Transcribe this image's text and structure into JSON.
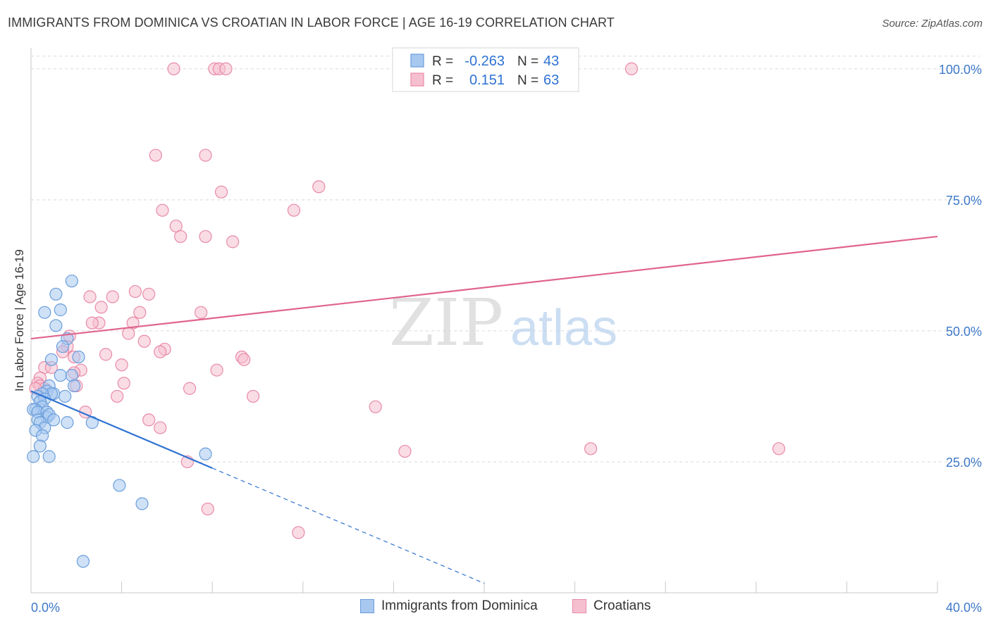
{
  "title": "IMMIGRANTS FROM DOMINICA VS CROATIAN IN LABOR FORCE | AGE 16-19 CORRELATION CHART",
  "source": "Source: ZipAtlas.com",
  "watermark": {
    "zip": "ZIP",
    "atlas": "atlas"
  },
  "colors": {
    "blue_fill": "#a8c8f0",
    "blue_stroke": "#6a9edb",
    "blue_line": "#2e72d2",
    "pink_fill": "#f6bfd0",
    "pink_stroke": "#e88aa8",
    "pink_line": "#e0648e",
    "axis_label": "#3d78c9",
    "grid": "#d9d9d9"
  },
  "stats_legend": [
    {
      "r_label": "R =",
      "r_value": "-0.263",
      "n_label": "N =",
      "n_value": "43"
    },
    {
      "r_label": "R =",
      "r_value": "0.151",
      "n_label": "N =",
      "n_value": "63"
    }
  ],
  "bottom_legend": [
    "Immigrants from Dominica",
    "Croatians"
  ],
  "chart_data": {
    "type": "scatter",
    "ylabel": "In Labor Force | Age 16-19",
    "xlim": [
      0,
      40
    ],
    "ylim": [
      0,
      104
    ],
    "x_ticks": [
      "0.0%",
      "40.0%"
    ],
    "y_ticks": [
      {
        "value": 25,
        "label": "25.0%"
      },
      {
        "value": 50,
        "label": "50.0%"
      },
      {
        "value": 75,
        "label": "75.0%"
      },
      {
        "value": 100,
        "label": "100.0%"
      }
    ],
    "series": [
      {
        "name": "Immigrants from Dominica",
        "points": [
          [
            1.8,
            59.5
          ],
          [
            1.1,
            57.0
          ],
          [
            0.6,
            53.5
          ],
          [
            1.3,
            54.0
          ],
          [
            1.1,
            51.0
          ],
          [
            1.6,
            48.5
          ],
          [
            1.4,
            47.0
          ],
          [
            2.1,
            45.0
          ],
          [
            0.9,
            44.5
          ],
          [
            1.3,
            41.5
          ],
          [
            1.8,
            41.5
          ],
          [
            1.9,
            39.5
          ],
          [
            0.8,
            39.5
          ],
          [
            0.7,
            38.5
          ],
          [
            1.0,
            38.0
          ],
          [
            0.9,
            38.0
          ],
          [
            1.5,
            37.5
          ],
          [
            0.5,
            38.0
          ],
          [
            0.3,
            37.5
          ],
          [
            0.6,
            37.0
          ],
          [
            0.4,
            36.5
          ],
          [
            0.5,
            35.5
          ],
          [
            0.2,
            35.0
          ],
          [
            0.1,
            35.0
          ],
          [
            0.3,
            34.5
          ],
          [
            0.7,
            34.5
          ],
          [
            0.7,
            33.5
          ],
          [
            0.8,
            34.0
          ],
          [
            0.3,
            33.0
          ],
          [
            0.4,
            32.5
          ],
          [
            1.6,
            32.5
          ],
          [
            2.7,
            32.5
          ],
          [
            1.0,
            33.0
          ],
          [
            0.6,
            31.5
          ],
          [
            0.2,
            31.0
          ],
          [
            0.5,
            30.0
          ],
          [
            0.4,
            28.0
          ],
          [
            0.1,
            26.0
          ],
          [
            0.8,
            26.0
          ],
          [
            7.7,
            26.5
          ],
          [
            3.9,
            20.5
          ],
          [
            4.9,
            17.0
          ],
          [
            2.3,
            6.0
          ]
        ],
        "trend": {
          "x1": 0.0,
          "y1": 38.5,
          "x2": 8.0,
          "y2": 23.8,
          "dash_to_x": 20.0,
          "dash_to_y": 1.8
        }
      },
      {
        "name": "Croatians",
        "points": [
          [
            6.3,
            100.0
          ],
          [
            8.1,
            100.0
          ],
          [
            8.3,
            100.0
          ],
          [
            8.6,
            100.0
          ],
          [
            22.6,
            100.0
          ],
          [
            26.5,
            100.0
          ],
          [
            5.5,
            83.5
          ],
          [
            7.7,
            83.5
          ],
          [
            12.7,
            77.5
          ],
          [
            8.4,
            76.5
          ],
          [
            5.8,
            73.0
          ],
          [
            11.6,
            73.0
          ],
          [
            6.4,
            70.0
          ],
          [
            6.6,
            68.0
          ],
          [
            7.7,
            68.0
          ],
          [
            8.9,
            67.0
          ],
          [
            5.2,
            57.0
          ],
          [
            4.6,
            57.5
          ],
          [
            2.6,
            56.5
          ],
          [
            3.6,
            56.5
          ],
          [
            3.1,
            54.5
          ],
          [
            4.8,
            53.5
          ],
          [
            7.5,
            53.5
          ],
          [
            3.0,
            51.5
          ],
          [
            2.7,
            51.5
          ],
          [
            4.5,
            51.5
          ],
          [
            4.3,
            49.5
          ],
          [
            1.7,
            49.0
          ],
          [
            5.0,
            48.0
          ],
          [
            1.6,
            47.0
          ],
          [
            1.4,
            46.0
          ],
          [
            1.9,
            45.0
          ],
          [
            3.3,
            45.5
          ],
          [
            5.9,
            46.5
          ],
          [
            5.7,
            46.0
          ],
          [
            9.3,
            45.0
          ],
          [
            9.4,
            44.5
          ],
          [
            4.0,
            43.5
          ],
          [
            0.6,
            43.0
          ],
          [
            0.9,
            43.0
          ],
          [
            2.2,
            42.5
          ],
          [
            8.2,
            42.5
          ],
          [
            1.9,
            42.0
          ],
          [
            0.4,
            41.0
          ],
          [
            2.0,
            39.5
          ],
          [
            0.3,
            40.0
          ],
          [
            0.4,
            39.5
          ],
          [
            0.6,
            39.0
          ],
          [
            4.1,
            40.0
          ],
          [
            7.0,
            39.0
          ],
          [
            3.8,
            37.5
          ],
          [
            9.8,
            37.5
          ],
          [
            15.2,
            35.5
          ],
          [
            2.4,
            34.5
          ],
          [
            5.2,
            33.0
          ],
          [
            5.7,
            31.5
          ],
          [
            16.5,
            27.0
          ],
          [
            24.7,
            27.5
          ],
          [
            33.0,
            27.5
          ],
          [
            6.9,
            25.0
          ],
          [
            7.8,
            16.0
          ],
          [
            11.8,
            11.5
          ],
          [
            0.2,
            39.0
          ]
        ],
        "trend": {
          "x1": 0.0,
          "y1": 48.5,
          "x2": 40.0,
          "y2": 68.0
        }
      }
    ],
    "grid": true,
    "legend_position": "top-center"
  }
}
